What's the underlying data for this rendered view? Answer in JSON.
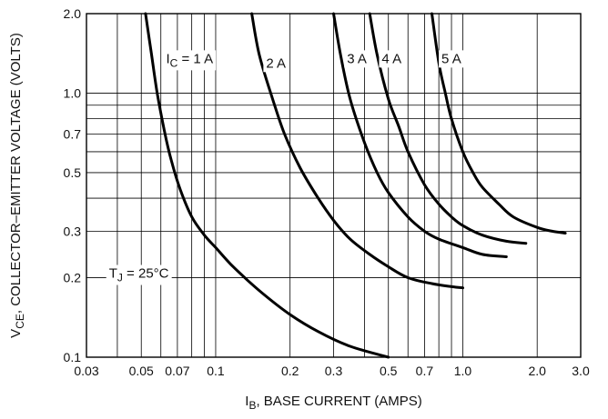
{
  "chart_data": {
    "type": "line",
    "x_scale": "log",
    "y_scale": "log",
    "xlim": [
      0.03,
      3.0
    ],
    "ylim": [
      0.1,
      2.0
    ],
    "grid": true,
    "legend": "none",
    "xlabel": {
      "main": "I",
      "sub": "B",
      "rest": ", BASE CURRENT (AMPS)"
    },
    "ylabel": {
      "main": "V",
      "sub": "CE",
      "rest": ", COLLECTOR–EMITTER VOLTAGE (VOLTS)"
    },
    "x_ticks": [
      {
        "value": 0.03,
        "label": "0.03"
      },
      {
        "value": 0.05,
        "label": "0.05"
      },
      {
        "value": 0.07,
        "label": "0.07"
      },
      {
        "value": 0.1,
        "label": "0.1"
      },
      {
        "value": 0.2,
        "label": "0.2"
      },
      {
        "value": 0.3,
        "label": "0.3"
      },
      {
        "value": 0.5,
        "label": "0.5"
      },
      {
        "value": 0.7,
        "label": "0.7"
      },
      {
        "value": 1.0,
        "label": "1.0"
      },
      {
        "value": 2.0,
        "label": "2.0"
      },
      {
        "value": 3.0,
        "label": "3.0"
      }
    ],
    "y_ticks": [
      {
        "value": 0.1,
        "label": "0.1"
      },
      {
        "value": 0.2,
        "label": "0.2"
      },
      {
        "value": 0.3,
        "label": "0.3"
      },
      {
        "value": 0.5,
        "label": "0.5"
      },
      {
        "value": 0.7,
        "label": "0.7"
      },
      {
        "value": 1.0,
        "label": "1.0"
      },
      {
        "value": 2.0,
        "label": "2.0"
      }
    ],
    "series": [
      {
        "name": "I_C = 1 A",
        "x": [
          0.052,
          0.055,
          0.058,
          0.062,
          0.066,
          0.072,
          0.08,
          0.09,
          0.1,
          0.115,
          0.135,
          0.16,
          0.2,
          0.26,
          0.35,
          0.5
        ],
        "y": [
          2.0,
          1.4,
          1.0,
          0.72,
          0.56,
          0.43,
          0.34,
          0.29,
          0.26,
          0.225,
          0.195,
          0.17,
          0.145,
          0.125,
          0.11,
          0.1
        ]
      },
      {
        "name": "2 A",
        "x": [
          0.14,
          0.15,
          0.17,
          0.19,
          0.22,
          0.26,
          0.3,
          0.35,
          0.42,
          0.5,
          0.6,
          0.75,
          0.9,
          1.0
        ],
        "y": [
          2.0,
          1.4,
          0.95,
          0.7,
          0.52,
          0.4,
          0.33,
          0.28,
          0.245,
          0.22,
          0.2,
          0.19,
          0.185,
          0.183
        ]
      },
      {
        "name": "3 A",
        "x": [
          0.3,
          0.32,
          0.35,
          0.4,
          0.45,
          0.5,
          0.6,
          0.7,
          0.8,
          1.0,
          1.2,
          1.5
        ],
        "y": [
          2.0,
          1.4,
          0.95,
          0.65,
          0.5,
          0.42,
          0.34,
          0.3,
          0.28,
          0.26,
          0.245,
          0.24
        ]
      },
      {
        "name": "4 A",
        "x": [
          0.42,
          0.45,
          0.5,
          0.55,
          0.6,
          0.7,
          0.8,
          0.9,
          1.0,
          1.2,
          1.5,
          1.8
        ],
        "y": [
          2.0,
          1.4,
          0.95,
          0.75,
          0.6,
          0.45,
          0.38,
          0.34,
          0.315,
          0.29,
          0.275,
          0.27
        ]
      },
      {
        "name": "5 A",
        "x": [
          0.75,
          0.8,
          0.85,
          0.9,
          1.0,
          1.1,
          1.2,
          1.4,
          1.6,
          2.0,
          2.3,
          2.6
        ],
        "y": [
          2.0,
          1.3,
          1.0,
          0.8,
          0.6,
          0.5,
          0.44,
          0.38,
          0.34,
          0.31,
          0.3,
          0.295
        ]
      }
    ],
    "annotations": [
      {
        "id": "ic1",
        "main": "I",
        "sub": "C",
        "rest": " = 1 A",
        "x": 0.063,
        "y": 1.3
      },
      {
        "id": "ic2",
        "main": "2 A",
        "sub": "",
        "rest": "",
        "x": 0.16,
        "y": 1.25
      },
      {
        "id": "ic3",
        "main": "3 A",
        "sub": "",
        "rest": "",
        "x": 0.34,
        "y": 1.3
      },
      {
        "id": "ic4",
        "main": "4 A",
        "sub": "",
        "rest": "",
        "x": 0.47,
        "y": 1.3
      },
      {
        "id": "ic5",
        "main": "5 A",
        "sub": "",
        "rest": "",
        "x": 0.82,
        "y": 1.3
      },
      {
        "id": "tj",
        "main": "T",
        "sub": "J",
        "rest": " = 25°C",
        "x": 0.037,
        "y": 0.2
      }
    ]
  }
}
